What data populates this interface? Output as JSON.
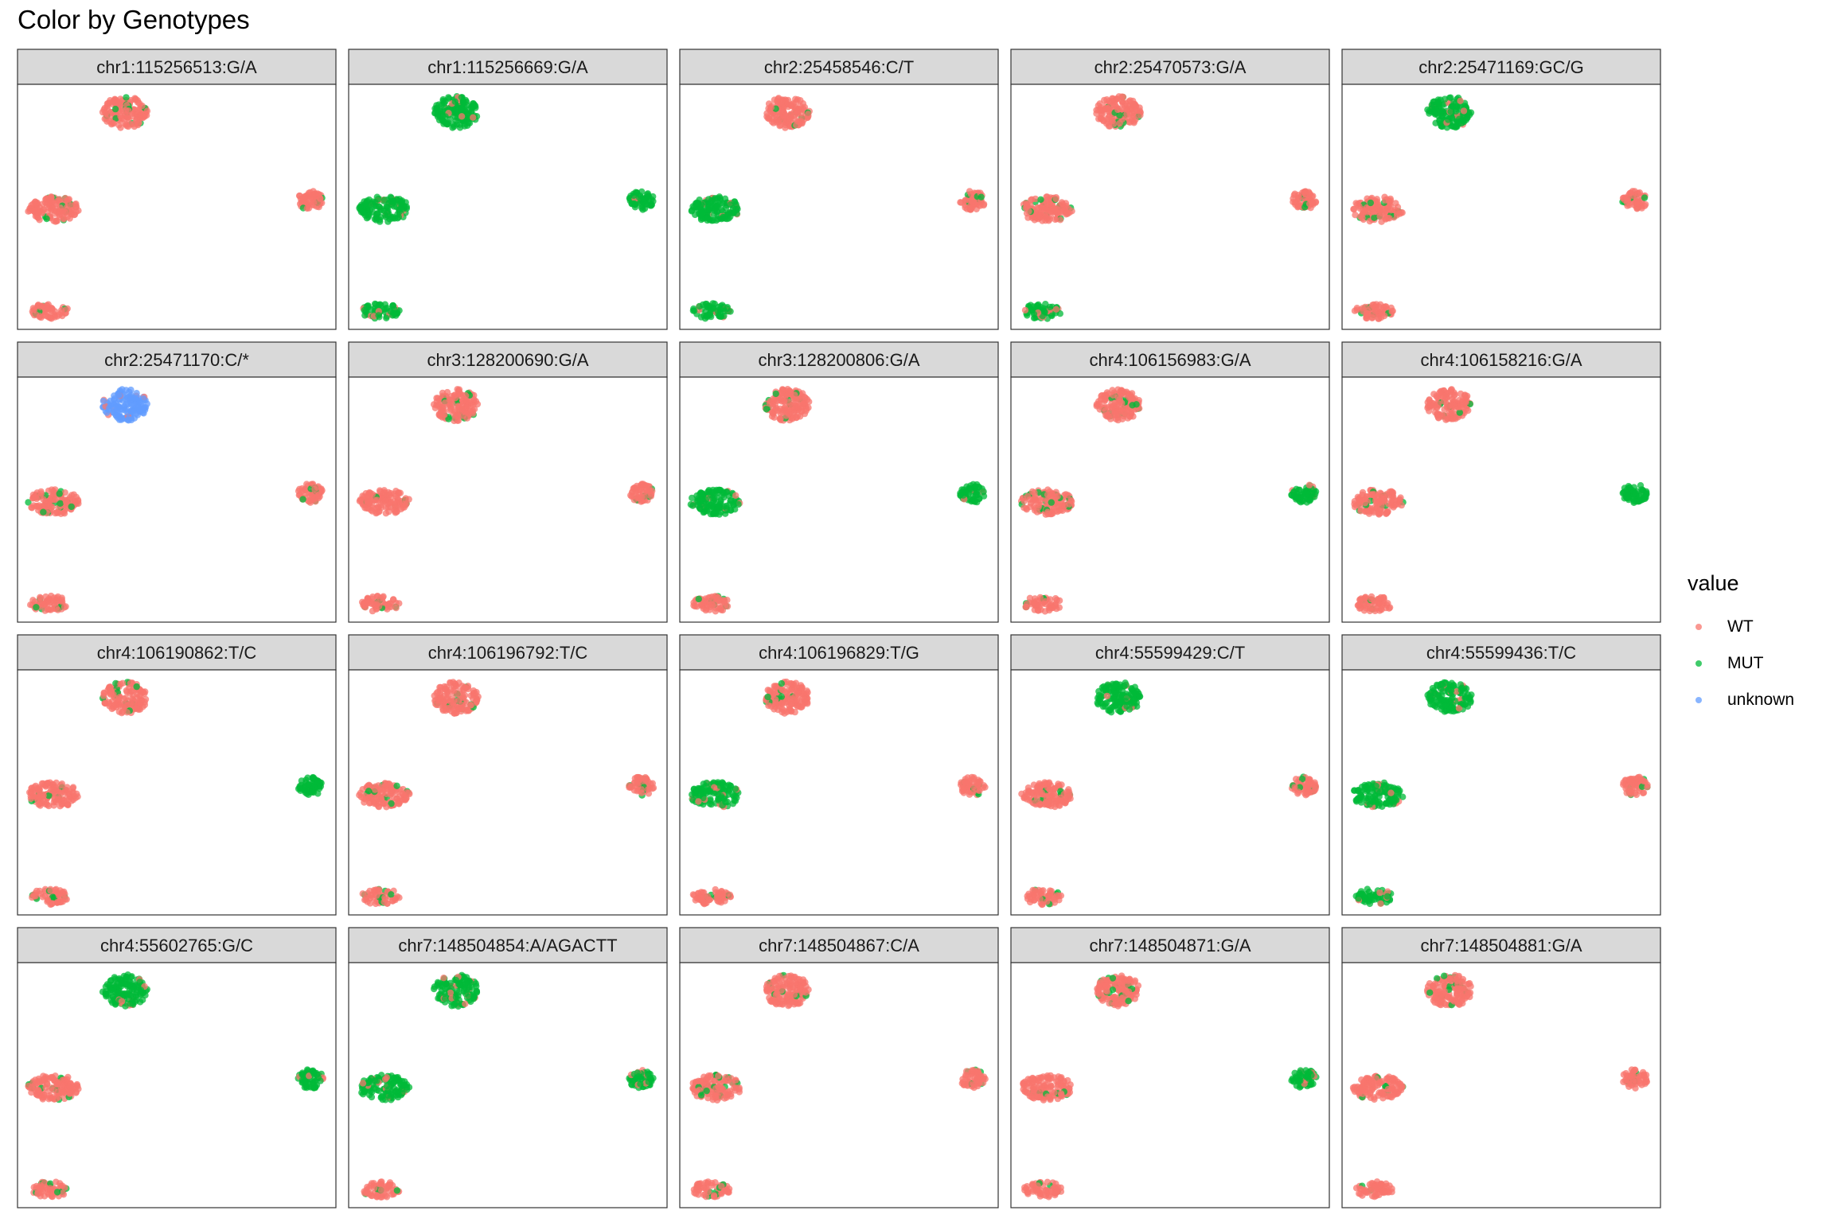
{
  "chart_data": {
    "type": "scatter",
    "title": "Color by Genotypes",
    "legend": {
      "title": "value",
      "position": "right",
      "entries": [
        {
          "label": "WT",
          "color": "#F8766D"
        },
        {
          "label": "MUT",
          "color": "#00BA38"
        },
        {
          "label": "unknown",
          "color": "#619CFF"
        }
      ]
    },
    "axes_visible": false,
    "grid": false,
    "facets": [
      {
        "label": "chr1:115256513:G/A",
        "clusters": {
          "top": "WT",
          "left": "WT",
          "right": "WT",
          "bottom": "WT"
        }
      },
      {
        "label": "chr1:115256669:G/A",
        "clusters": {
          "top": "MUT",
          "left": "MUT",
          "right": "MUT",
          "bottom": "MUT"
        }
      },
      {
        "label": "chr2:25458546:C/T",
        "clusters": {
          "top": "WT",
          "left": "MUT",
          "right": "WT",
          "bottom": "MUT"
        }
      },
      {
        "label": "chr2:25470573:G/A",
        "clusters": {
          "top": "WT",
          "left": "WT",
          "right": "WT",
          "bottom": "MUT"
        }
      },
      {
        "label": "chr2:25471169:GC/G",
        "clusters": {
          "top": "MUT",
          "left": "WT",
          "right": "WT",
          "bottom": "WT"
        }
      },
      {
        "label": "chr2:25471170:C/*",
        "clusters": {
          "top": "unknown",
          "left": "WT",
          "right": "WT",
          "bottom": "WT"
        }
      },
      {
        "label": "chr3:128200690:G/A",
        "clusters": {
          "top": "WT",
          "left": "WT",
          "right": "WT",
          "bottom": "WT"
        }
      },
      {
        "label": "chr3:128200806:G/A",
        "clusters": {
          "top": "WT",
          "left": "MUT",
          "right": "MUT",
          "bottom": "WT"
        }
      },
      {
        "label": "chr4:106156983:G/A",
        "clusters": {
          "top": "WT",
          "left": "WT",
          "right": "MUT",
          "bottom": "WT"
        }
      },
      {
        "label": "chr4:106158216:G/A",
        "clusters": {
          "top": "WT",
          "left": "WT",
          "right": "MUT",
          "bottom": "WT"
        }
      },
      {
        "label": "chr4:106190862:T/C",
        "clusters": {
          "top": "WT",
          "left": "WT",
          "right": "MUT",
          "bottom": "WT"
        }
      },
      {
        "label": "chr4:106196792:T/C",
        "clusters": {
          "top": "WT",
          "left": "WT",
          "right": "WT",
          "bottom": "WT"
        }
      },
      {
        "label": "chr4:106196829:T/G",
        "clusters": {
          "top": "WT",
          "left": "MUT",
          "right": "WT",
          "bottom": "WT"
        }
      },
      {
        "label": "chr4:55599429:C/T",
        "clusters": {
          "top": "MUT",
          "left": "WT",
          "right": "WT",
          "bottom": "WT"
        }
      },
      {
        "label": "chr4:55599436:T/C",
        "clusters": {
          "top": "MUT",
          "left": "MUT",
          "right": "WT",
          "bottom": "MUT"
        }
      },
      {
        "label": "chr4:55602765:G/C",
        "clusters": {
          "top": "MUT",
          "left": "WT",
          "right": "MUT",
          "bottom": "WT"
        }
      },
      {
        "label": "chr7:148504854:A/AGACTT",
        "clusters": {
          "top": "MUT",
          "left": "MUT",
          "right": "MUT",
          "bottom": "WT"
        }
      },
      {
        "label": "chr7:148504867:C/A",
        "clusters": {
          "top": "WT",
          "left": "WT",
          "right": "WT",
          "bottom": "WT"
        }
      },
      {
        "label": "chr7:148504871:G/A",
        "clusters": {
          "top": "WT",
          "left": "WT",
          "right": "MUT",
          "bottom": "WT"
        }
      },
      {
        "label": "chr7:148504881:G/A",
        "clusters": {
          "top": "WT",
          "left": "WT",
          "right": "WT",
          "bottom": "WT"
        }
      }
    ]
  }
}
